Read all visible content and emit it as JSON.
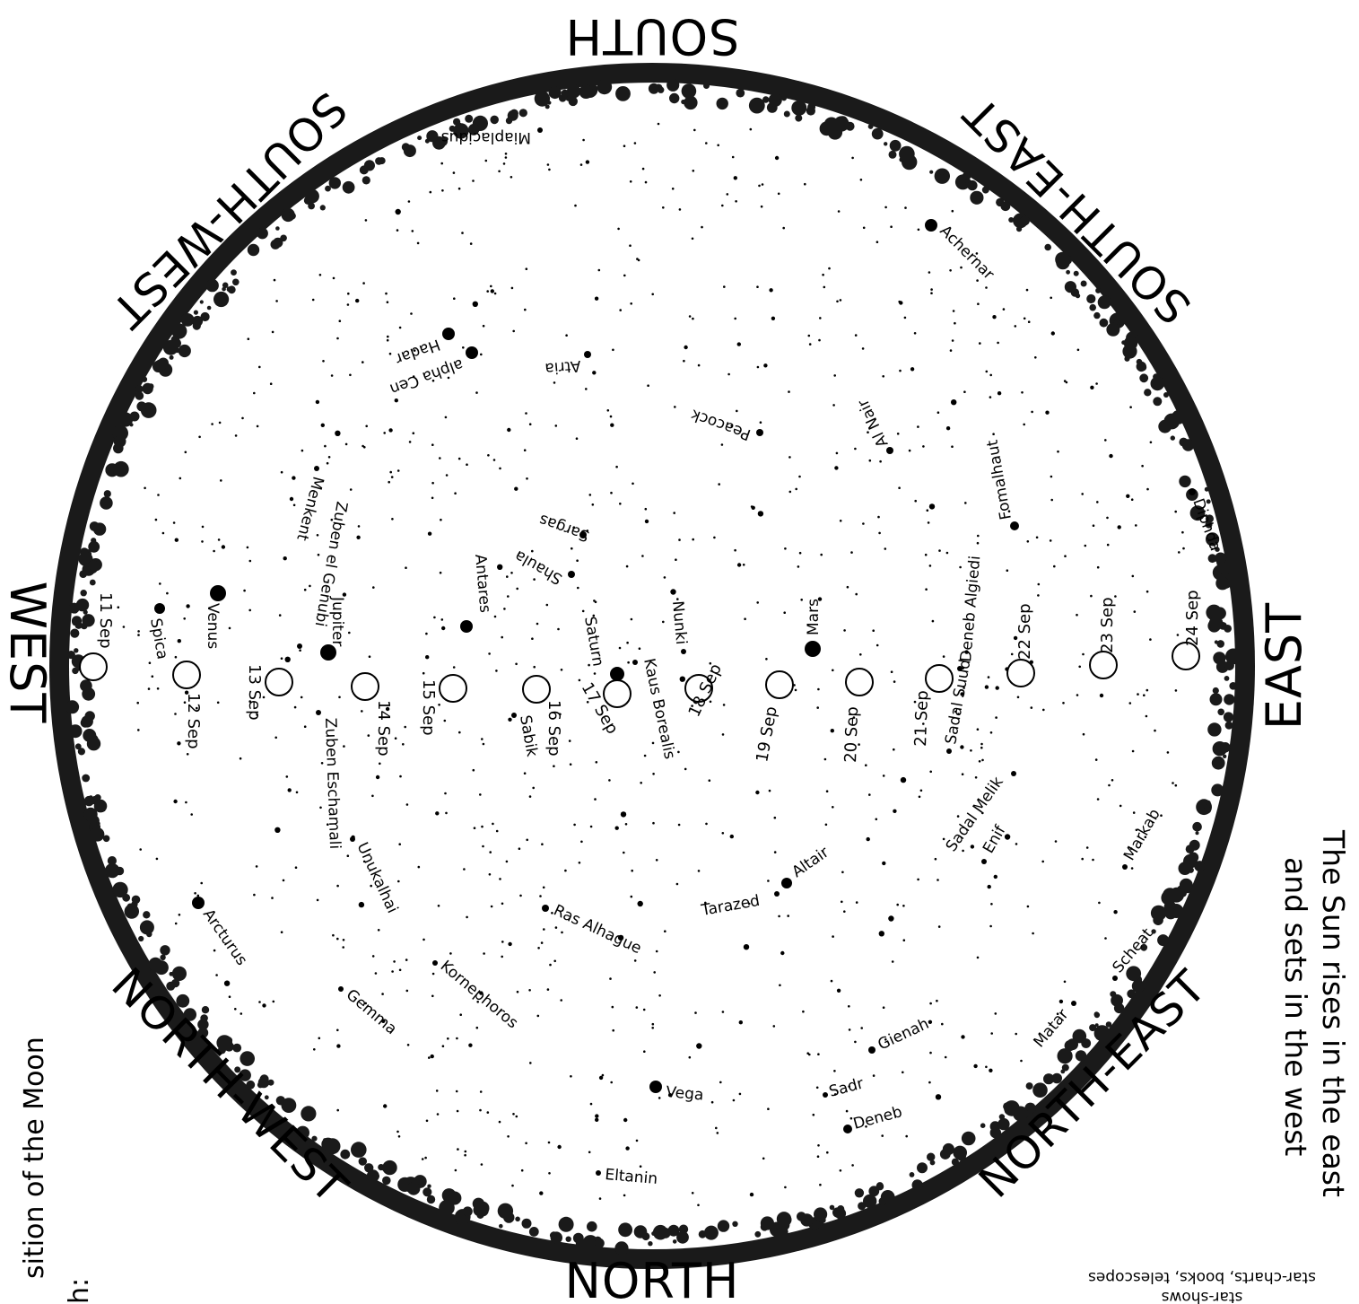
{
  "directions": {
    "south": "SOUTH",
    "north": "NORTH",
    "east": "EAST",
    "west": "WEST",
    "south_east": "SOUTH-EAST",
    "south_west": "SOUTH-WEST",
    "north_east": "NORTH-EAST",
    "north_west": "NORTH-WEST"
  },
  "side_note": {
    "line1": "The Sun rises in the east",
    "line2": "and sets in the west"
  },
  "left_note": {
    "moon": "sition of the Moon",
    "fragment": "h:"
  },
  "corner_note": {
    "line1": "star-charts, books, telescopes",
    "line2": "star-shows"
  },
  "moon_positions": [
    "11 Sep",
    "12 Sep",
    "13 Sep",
    "14 Sep",
    "15 Sep",
    "16 Sep",
    "17 Sep",
    "18 Sep",
    "19 Sep",
    "20 Sep",
    "21 Sep",
    "22 Sep",
    "23 Sep",
    "24 Sep"
  ],
  "planets": [
    "Venus",
    "Jupiter",
    "Saturn",
    "Mars"
  ],
  "stars": [
    "Miaplacidus",
    "Achernar",
    "Hadar",
    "alpha Cen",
    "Atria",
    "Peacock",
    "Al Nair",
    "Fomalhaut",
    "Diphda",
    "Menkent",
    "Zuben el Genubi",
    "Antares",
    "Sargas",
    "Shaula",
    "Nunki",
    "Deneb Algiedi",
    "Spica",
    "Kaus Borealis",
    "Sabik",
    "Sadal Suud",
    "Zuben Eschamali",
    "Sadal Melik",
    "Markab",
    "Enif",
    "Altair",
    "Tarazed",
    "Unukalhai",
    "Arcturus",
    "Ras Alhague",
    "Kornephoros",
    "Gemma",
    "Scheat",
    "Matar",
    "Gienah",
    "Sadr",
    "Deneb",
    "Vega",
    "Eltanin"
  ]
}
